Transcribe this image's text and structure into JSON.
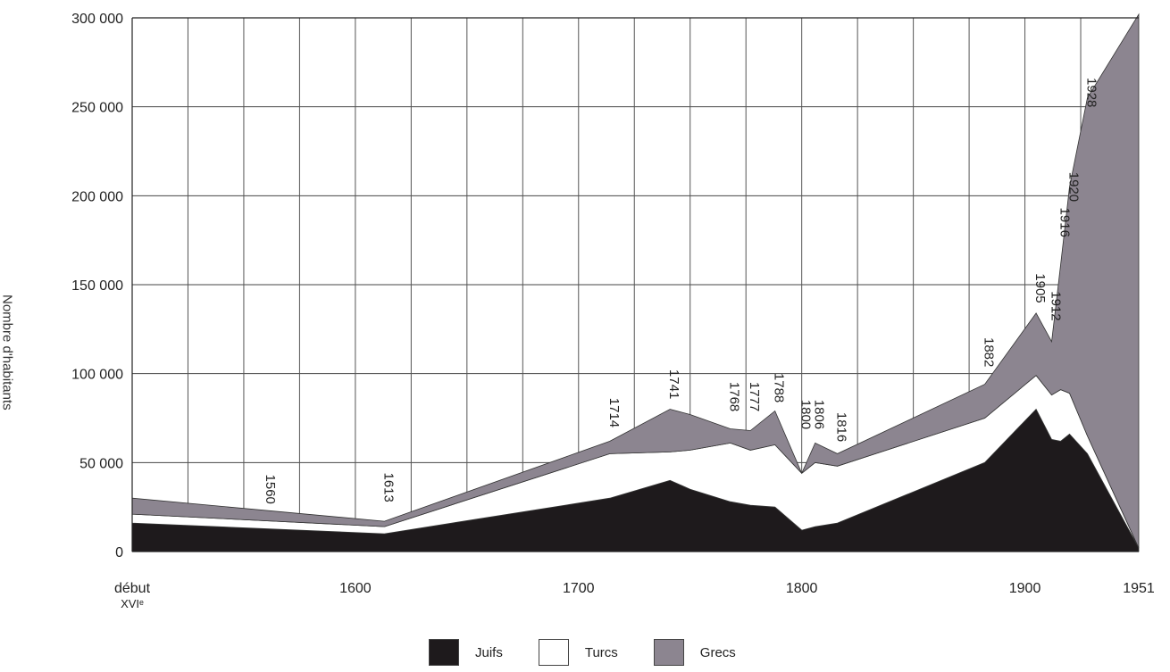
{
  "chart_data": {
    "type": "area",
    "stacked": true,
    "ylabel": "Nombre d'habitants",
    "xlabel": "",
    "ylim": [
      0,
      300000
    ],
    "y_ticks": [
      0,
      50000,
      100000,
      150000,
      200000,
      250000,
      300000
    ],
    "y_tick_labels": [
      "0",
      "50 000",
      "100 000",
      "150 000",
      "200 000",
      "250 000",
      "300 000"
    ],
    "x_tick_labels": [
      {
        "x": 1500,
        "lines": [
          "début",
          "XVIᵉ"
        ]
      },
      {
        "x": 1600,
        "lines": [
          "1600"
        ]
      },
      {
        "x": 1700,
        "lines": [
          "1700"
        ]
      },
      {
        "x": 1800,
        "lines": [
          "1800"
        ]
      },
      {
        "x": 1900,
        "lines": [
          "1900"
        ]
      },
      {
        "x": 1951,
        "lines": [
          "1951"
        ]
      }
    ],
    "grid": true,
    "legend_position": "bottom-center",
    "x": [
      1500,
      1613,
      1714,
      1741,
      1750,
      1768,
      1777,
      1788,
      1800,
      1806,
      1816,
      1882,
      1905,
      1912,
      1916,
      1920,
      1928,
      1951
    ],
    "series": [
      {
        "name": "Juifs",
        "color": "#1e1a1c",
        "values": [
          16000,
          10000,
          30000,
          40000,
          35000,
          28000,
          26000,
          25000,
          12000,
          14000,
          16000,
          50000,
          80000,
          63000,
          62000,
          66000,
          55000,
          2000
        ]
      },
      {
        "name": "Turcs",
        "color": "#ffffff",
        "values": [
          5000,
          4000,
          25000,
          16000,
          22000,
          33000,
          31000,
          35000,
          32000,
          36000,
          32000,
          25000,
          19000,
          25000,
          29000,
          23000,
          10000,
          0
        ]
      },
      {
        "name": "Grecs",
        "color": "#8c8590",
        "values": [
          9000,
          3000,
          7000,
          24000,
          20000,
          8000,
          11000,
          19000,
          0,
          11000,
          7000,
          19000,
          35000,
          30000,
          70000,
          116000,
          190000,
          300000
        ]
      }
    ],
    "annotations": [
      {
        "label": "1560",
        "x": 1560,
        "y": 35000
      },
      {
        "label": "1613",
        "x": 1613,
        "y": 36000
      },
      {
        "label": "1714",
        "x": 1714,
        "y": 78000
      },
      {
        "label": "1741",
        "x": 1741,
        "y": 94000
      },
      {
        "label": "1768",
        "x": 1768,
        "y": 87000
      },
      {
        "label": "1777",
        "x": 1777,
        "y": 87000
      },
      {
        "label": "1788",
        "x": 1788,
        "y": 92000
      },
      {
        "label": "1800",
        "x": 1800,
        "y": 77000
      },
      {
        "label": "1806",
        "x": 1806,
        "y": 77000
      },
      {
        "label": "1816",
        "x": 1816,
        "y": 70000
      },
      {
        "label": "1882",
        "x": 1882,
        "y": 112000
      },
      {
        "label": "1905",
        "x": 1905,
        "y": 148000
      },
      {
        "label": "1912",
        "x": 1912,
        "y": 138000
      },
      {
        "label": "1916",
        "x": 1916,
        "y": 185000
      },
      {
        "label": "1920",
        "x": 1920,
        "y": 205000
      },
      {
        "label": "1928",
        "x": 1928,
        "y": 258000
      }
    ]
  }
}
